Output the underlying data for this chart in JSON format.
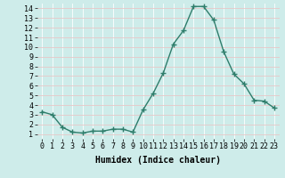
{
  "x": [
    0,
    1,
    2,
    3,
    4,
    5,
    6,
    7,
    8,
    9,
    10,
    11,
    12,
    13,
    14,
    15,
    16,
    17,
    18,
    19,
    20,
    21,
    22,
    23
  ],
  "y": [
    3.3,
    3.0,
    1.7,
    1.2,
    1.1,
    1.3,
    1.3,
    1.5,
    1.5,
    1.2,
    3.5,
    5.2,
    7.3,
    10.3,
    11.7,
    14.2,
    14.2,
    12.8,
    9.5,
    7.2,
    6.2,
    4.5,
    4.4,
    3.7
  ],
  "line_color": "#2e7d6b",
  "marker": "+",
  "marker_size": 4,
  "line_width": 1.0,
  "background_color": "#ceecea",
  "grid_color": "#e8c8c8",
  "grid_color2": "#ffffff",
  "xlabel": "Humidex (Indice chaleur)",
  "xlabel_fontsize": 7,
  "tick_fontsize": 6,
  "xlim": [
    -0.5,
    23.5
  ],
  "ylim": [
    0.5,
    14.5
  ],
  "yticks": [
    1,
    2,
    3,
    4,
    5,
    6,
    7,
    8,
    9,
    10,
    11,
    12,
    13,
    14
  ],
  "xticks": [
    0,
    1,
    2,
    3,
    4,
    5,
    6,
    7,
    8,
    9,
    10,
    11,
    12,
    13,
    14,
    15,
    16,
    17,
    18,
    19,
    20,
    21,
    22,
    23
  ]
}
